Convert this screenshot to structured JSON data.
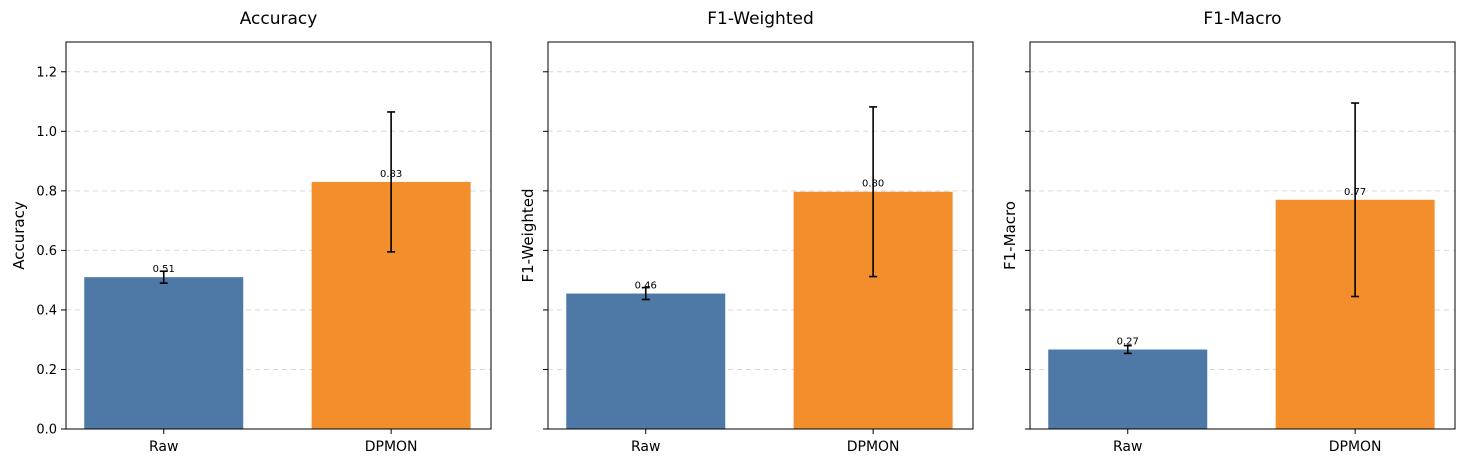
{
  "chart_data": [
    {
      "type": "bar",
      "title": "Accuracy",
      "ylabel": "Accuracy",
      "categories": [
        "Raw",
        "DPMON"
      ],
      "values": [
        0.51,
        0.83
      ],
      "errors": [
        0.02,
        0.235
      ],
      "value_labels": [
        "0.51",
        "0.83"
      ],
      "colors": [
        "#4e79a7",
        "#f28e2b"
      ],
      "ylim": [
        0,
        1.3
      ],
      "yticks": [
        0.0,
        0.2,
        0.4,
        0.6,
        0.8,
        1.0,
        1.2
      ],
      "ytick_labels": [
        "0.0",
        "0.2",
        "0.4",
        "0.6",
        "0.8",
        "1.0",
        "1.2"
      ],
      "grid": "y-dashed"
    },
    {
      "type": "bar",
      "title": "F1-Weighted",
      "ylabel": "F1-Weighted",
      "categories": [
        "Raw",
        "DPMON"
      ],
      "values": [
        0.455,
        0.797
      ],
      "errors": [
        0.02,
        0.285
      ],
      "value_labels": [
        "0.46",
        "0.80"
      ],
      "colors": [
        "#4e79a7",
        "#f28e2b"
      ],
      "ylim": [
        0,
        1.3
      ],
      "yticks": [
        0.0,
        0.2,
        0.4,
        0.6,
        0.8,
        1.0,
        1.2
      ],
      "ytick_labels": [],
      "grid": "y-dashed"
    },
    {
      "type": "bar",
      "title": "F1-Macro",
      "ylabel": "F1-Macro",
      "categories": [
        "Raw",
        "DPMON"
      ],
      "values": [
        0.267,
        0.77
      ],
      "errors": [
        0.013,
        0.325
      ],
      "value_labels": [
        "0.27",
        "0.77"
      ],
      "colors": [
        "#4e79a7",
        "#f28e2b"
      ],
      "ylim": [
        0,
        1.3
      ],
      "yticks": [
        0.0,
        0.2,
        0.4,
        0.6,
        0.8,
        1.0,
        1.2
      ],
      "ytick_labels": [],
      "grid": "y-dashed"
    }
  ]
}
